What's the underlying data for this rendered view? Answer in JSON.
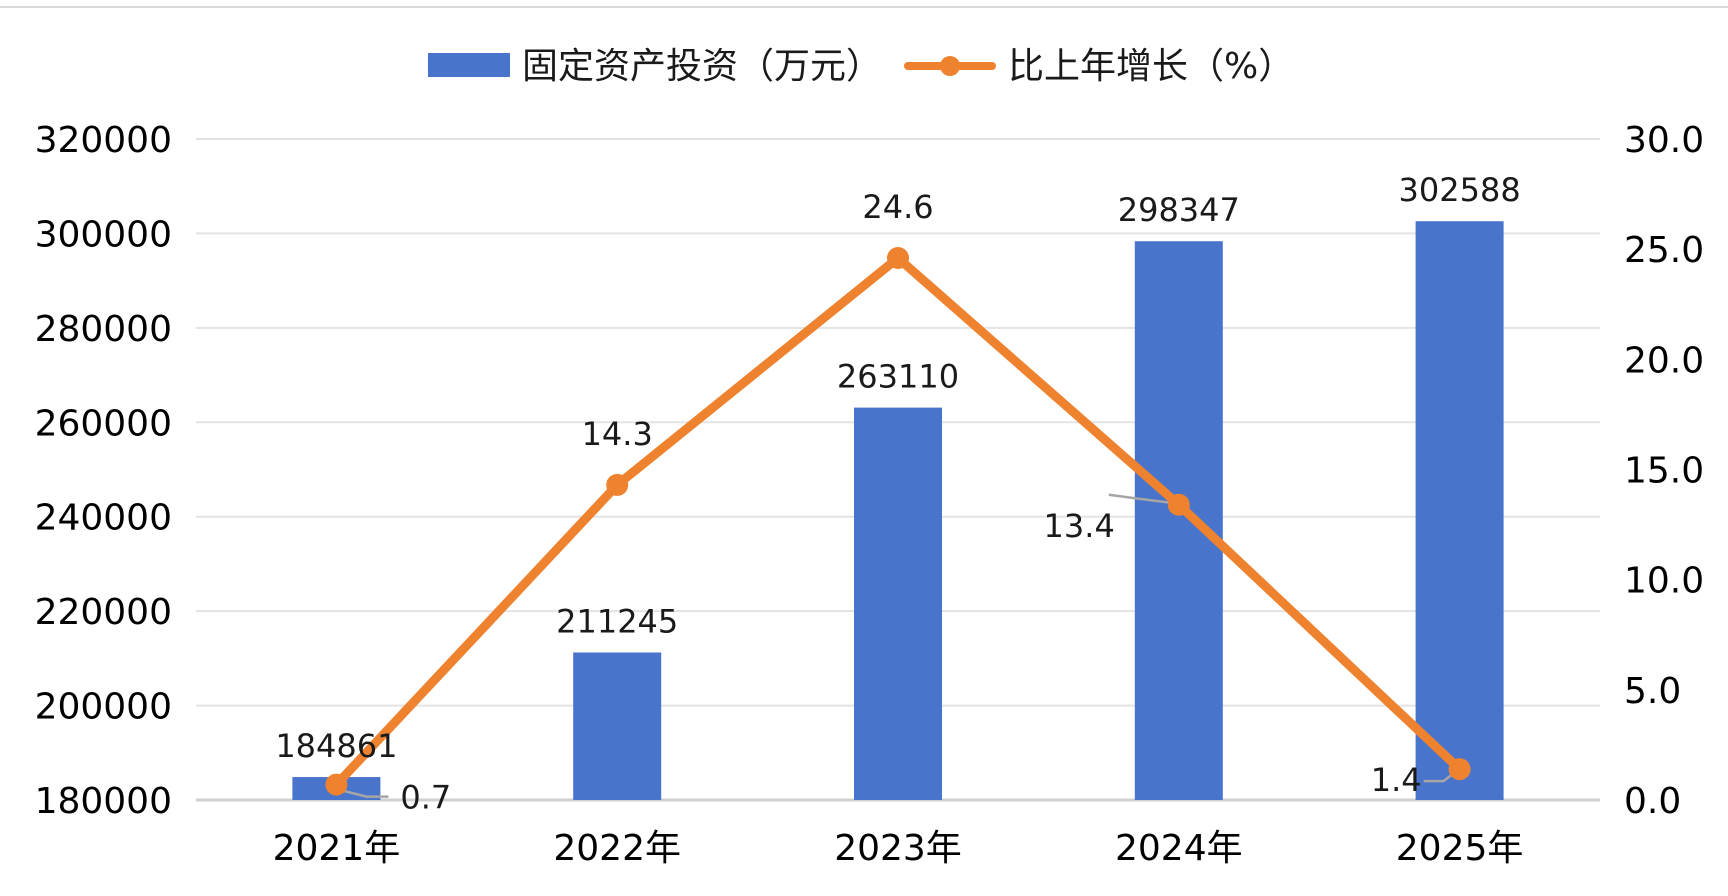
{
  "chart_data": {
    "type": "bar+line",
    "title": "",
    "categories": [
      "2021年",
      "2022年",
      "2023年",
      "2024年",
      "2025年"
    ],
    "series": [
      {
        "name": "固定资产投资（万元）",
        "type": "bar",
        "axis": "left",
        "color": "#4874cb",
        "values": [
          184861,
          211245,
          263110,
          298347,
          302588
        ],
        "labels": [
          "184861",
          "211245",
          "263110",
          "298347",
          "302588"
        ]
      },
      {
        "name": "比上年增长（%）",
        "type": "line",
        "axis": "right",
        "color": "#ee822f",
        "values": [
          0.7,
          14.3,
          24.6,
          13.4,
          1.4
        ],
        "labels": [
          "0.7",
          "14.3",
          "24.6",
          "13.4",
          "1.4"
        ]
      }
    ],
    "y_left": {
      "range": [
        180000,
        320000
      ],
      "ticks": [
        "180000",
        "200000",
        "220000",
        "240000",
        "260000",
        "280000",
        "300000",
        "320000"
      ]
    },
    "y_right": {
      "range": [
        0,
        30
      ],
      "ticks": [
        "0.0",
        "5.0",
        "10.0",
        "15.0",
        "20.0",
        "25.0",
        "30.0"
      ]
    },
    "grid": true,
    "legend_position": "top-center"
  }
}
